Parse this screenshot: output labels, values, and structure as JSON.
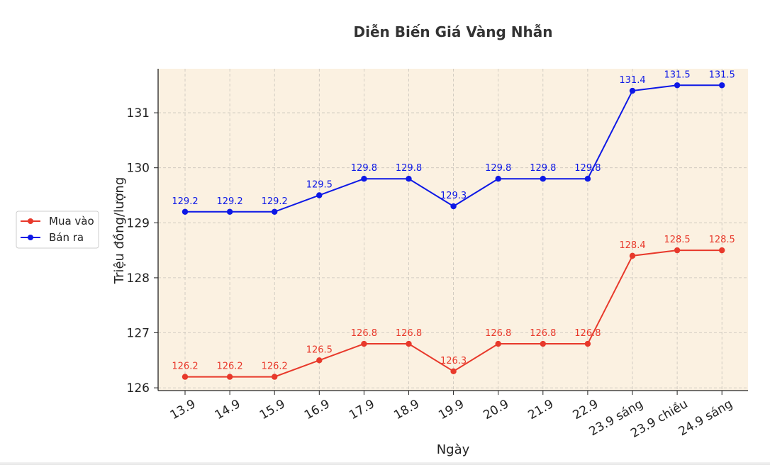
{
  "chart_data": {
    "type": "line",
    "title": "Diễn Biến Giá Vàng Nhẫn",
    "xlabel": "Ngày",
    "ylabel": "Triệu đồng/lượng",
    "categories": [
      "13.9",
      "14.9",
      "15.9",
      "16.9",
      "17.9",
      "18.9",
      "19.9",
      "20.9",
      "21.9",
      "22.9",
      "23.9 sáng",
      "23.9 chiều",
      "24.9 sáng"
    ],
    "yticks": [
      126,
      127,
      128,
      129,
      130,
      131
    ],
    "ylim": [
      125.95,
      131.8
    ],
    "grid": true,
    "legend_position": "left",
    "plot_background": "#fbf1e1",
    "series": [
      {
        "name": "Mua vào",
        "color": "#e8392b",
        "values": [
          126.2,
          126.2,
          126.2,
          126.5,
          126.8,
          126.8,
          126.3,
          126.8,
          126.8,
          126.8,
          128.4,
          128.5,
          128.5
        ],
        "labels": [
          "126.2",
          "126.2",
          "126.2",
          "126.5",
          "126.8",
          "126.8",
          "126.3",
          "126.8",
          "126.8",
          "126.8",
          "128.4",
          "128.5",
          "128.5"
        ]
      },
      {
        "name": "Bán ra",
        "color": "#0d18e6",
        "values": [
          129.2,
          129.2,
          129.2,
          129.5,
          129.8,
          129.8,
          129.3,
          129.8,
          129.8,
          129.8,
          131.4,
          131.5,
          131.5
        ],
        "labels": [
          "129.2",
          "129.2",
          "129.2",
          "129.5",
          "129.8",
          "129.8",
          "129.3",
          "129.8",
          "129.8",
          "129.8",
          "131.4",
          "131.5",
          "131.5"
        ]
      }
    ]
  }
}
